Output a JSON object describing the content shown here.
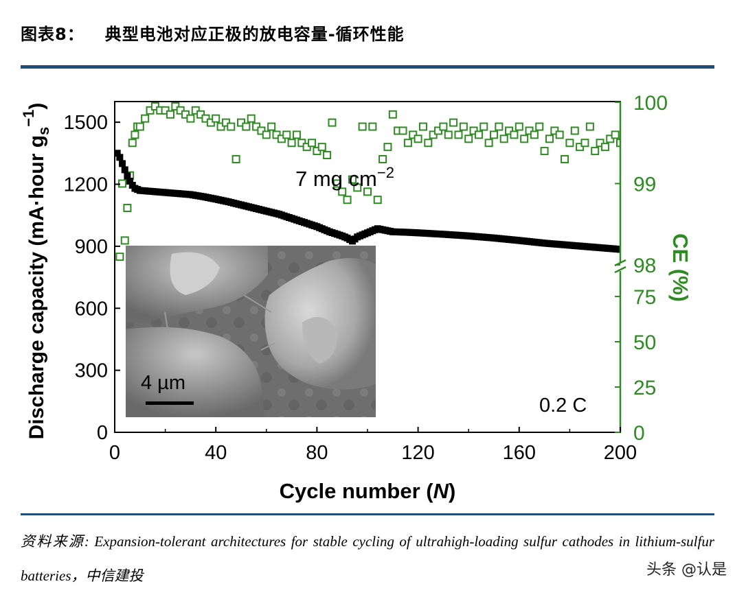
{
  "figure": {
    "label": "图表8：",
    "title": "典型电池对应正极的放电容量-循环性能",
    "source": "资料来源: Expansion-tolerant architectures for stable cycling of ultrahigh-loading sulfur cathodes in lithium-sulfur batteries，中信建投",
    "watermark": "头条 @认是"
  },
  "colors": {
    "rule": "#1f4e79",
    "capacity": "#000000",
    "ce": "#2e8b22"
  },
  "chart_data": {
    "type": "scatter",
    "xlabel_main": "Cycle number (",
    "xlabel_var": "N",
    "xlabel_end": ")",
    "ylabel_left": "Discharge capacity (mA·hour g",
    "ylabel_left_sub": "s",
    "ylabel_left_sup": "−1",
    "ylabel_left_end": ")",
    "ylabel_right": "CE (%)",
    "xlim": [
      0,
      200
    ],
    "xticks": [
      "0",
      "40",
      "80",
      "120",
      "160",
      "200"
    ],
    "ylim_left": [
      0,
      1600
    ],
    "yticks_left": [
      "0",
      "300",
      "600",
      "900",
      "1200",
      "1500"
    ],
    "yticks_right_upper": [
      "98",
      "99",
      "100"
    ],
    "yticks_right_lower": [
      "0",
      "25",
      "50",
      "75"
    ],
    "annotation_loading": "7 mg cm",
    "annotation_loading_sup": "−2",
    "annotation_rate": "0.2 C",
    "inset_scale": "4 µm",
    "series": [
      {
        "name": "Discharge capacity",
        "axis": "left",
        "marker": "filled-square",
        "x": [
          1,
          2,
          3,
          4,
          5,
          6,
          7,
          8,
          10,
          12,
          15,
          20,
          25,
          30,
          35,
          40,
          45,
          50,
          55,
          60,
          65,
          70,
          75,
          80,
          85,
          90,
          92,
          94,
          96,
          98,
          100,
          102,
          104,
          106,
          108,
          110,
          115,
          120,
          130,
          140,
          150,
          160,
          170,
          180,
          190,
          200
        ],
        "y": [
          1350,
          1330,
          1300,
          1270,
          1240,
          1215,
          1195,
          1180,
          1170,
          1168,
          1165,
          1160,
          1155,
          1150,
          1140,
          1128,
          1115,
          1100,
          1085,
          1070,
          1055,
          1035,
          1015,
          995,
          970,
          950,
          940,
          925,
          945,
          955,
          965,
          975,
          985,
          980,
          975,
          970,
          968,
          965,
          958,
          950,
          940,
          928,
          915,
          905,
          895,
          885
        ]
      },
      {
        "name": "Coulombic efficiency",
        "axis": "right",
        "marker": "open-square",
        "x": [
          2,
          3,
          4,
          5,
          6,
          7,
          8,
          9,
          10,
          12,
          14,
          16,
          18,
          20,
          22,
          24,
          26,
          28,
          30,
          32,
          34,
          36,
          38,
          40,
          42,
          44,
          46,
          48,
          50,
          52,
          54,
          56,
          58,
          60,
          62,
          64,
          66,
          68,
          70,
          72,
          74,
          76,
          78,
          80,
          82,
          84,
          86,
          88,
          90,
          92,
          94,
          96,
          98,
          100,
          102,
          104,
          106,
          108,
          110,
          112,
          114,
          116,
          118,
          120,
          122,
          124,
          126,
          128,
          130,
          132,
          134,
          136,
          138,
          140,
          142,
          144,
          146,
          148,
          150,
          152,
          154,
          156,
          158,
          160,
          162,
          164,
          166,
          168,
          170,
          172,
          174,
          176,
          178,
          180,
          182,
          184,
          186,
          188,
          190,
          192,
          194,
          196,
          198,
          200
        ],
        "y": [
          98.1,
          99.0,
          98.3,
          98.7,
          99.1,
          99.5,
          99.6,
          99.7,
          99.7,
          99.8,
          99.9,
          99.95,
          99.9,
          99.9,
          99.85,
          99.95,
          99.9,
          99.85,
          99.8,
          99.9,
          99.85,
          99.8,
          99.75,
          99.8,
          99.7,
          99.75,
          99.7,
          99.3,
          99.75,
          99.7,
          99.8,
          99.7,
          99.65,
          99.6,
          99.7,
          99.6,
          99.55,
          99.6,
          99.5,
          99.6,
          99.5,
          99.45,
          99.5,
          99.4,
          99.45,
          99.35,
          99.75,
          99.0,
          98.9,
          98.8,
          99.05,
          98.95,
          99.7,
          98.9,
          99.7,
          98.8,
          99.3,
          99.45,
          99.85,
          99.65,
          99.65,
          99.5,
          99.6,
          99.55,
          99.7,
          99.5,
          99.6,
          99.65,
          99.7,
          99.6,
          99.75,
          99.6,
          99.7,
          99.55,
          99.65,
          99.6,
          99.7,
          99.5,
          99.6,
          99.7,
          99.55,
          99.65,
          99.6,
          99.7,
          99.55,
          99.65,
          99.6,
          99.7,
          99.4,
          99.55,
          99.65,
          99.6,
          99.3,
          99.5,
          99.65,
          99.45,
          99.5,
          99.7,
          99.4,
          99.5,
          99.45,
          99.55,
          99.6,
          99.5
        ]
      }
    ]
  }
}
